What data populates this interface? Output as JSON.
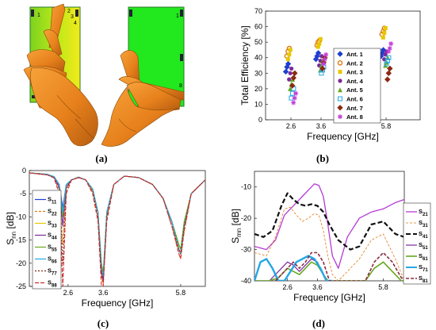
{
  "panel_labels": [
    "(a)",
    "(b)",
    "(c)",
    "(d)"
  ],
  "panel_a": {
    "left_phone_numbers": [
      "1",
      "2",
      "3",
      "4",
      "6",
      "5",
      "8"
    ],
    "right_phone_numbers": [
      "1",
      "5",
      "8",
      "7"
    ]
  },
  "chart_data": [
    {
      "id": "b",
      "type": "scatter",
      "xlabel": "Frequency [GHz]",
      "ylabel": "Total Efficiency [%]",
      "x_ticks": [
        "2.6",
        "3.6",
        "5.8"
      ],
      "y_ticks": [
        "0",
        "10",
        "20",
        "30",
        "40",
        "50",
        "60",
        "70"
      ],
      "ylim": [
        0,
        70
      ],
      "grid": false,
      "legend_position": "right",
      "categories": [
        "2.6",
        "3.6",
        "5.8"
      ],
      "series": [
        {
          "name": "Ant. 1",
          "color": "#1f3fd0",
          "marker": "diamond-filled",
          "values": [
            [
              31,
              34,
              36
            ],
            [
              39,
              41,
              43
            ],
            [
              41,
              43,
              45
            ]
          ]
        },
        {
          "name": "Ant. 2",
          "color": "#e07a10",
          "marker": "circle-open",
          "values": [
            [
              41,
              44,
              46
            ],
            [
              48,
              50,
              51
            ],
            [
              55,
              57,
              59
            ]
          ]
        },
        {
          "name": "Ant. 3",
          "color": "#e8c800",
          "marker": "square-filled",
          "values": [
            [
              39,
              42,
              45
            ],
            [
              47,
              49,
              52
            ],
            [
              53,
              56,
              59
            ]
          ]
        },
        {
          "name": "Ant. 4",
          "color": "#7a2a9a",
          "marker": "circle-filled",
          "values": [
            [
              26,
              30,
              33
            ],
            [
              35,
              38,
              41
            ],
            [
              39,
              42,
              44
            ]
          ]
        },
        {
          "name": "Ant. 5",
          "color": "#66a81e",
          "marker": "triangle-filled",
          "values": [
            [
              20,
              23,
              26
            ],
            [
              32,
              35,
              38
            ],
            [
              35,
              37,
              40
            ]
          ]
        },
        {
          "name": "Ant. 6",
          "color": "#25a7e6",
          "marker": "square-open",
          "values": [
            [
              14,
              17,
              20
            ],
            [
              30,
              32,
              34
            ],
            [
              36,
              38,
              40
            ]
          ]
        },
        {
          "name": "Ant. 7",
          "color": "#8b2a14",
          "marker": "diamond-filled",
          "values": [
            [
              22,
              27,
              30
            ],
            [
              33,
              37,
              40
            ],
            [
              26,
              30,
              33
            ]
          ]
        },
        {
          "name": "Ant. 8",
          "color": "#c43ed8",
          "marker": "star",
          "values": [
            [
              11,
              14,
              17
            ],
            [
              36,
              39,
              42
            ],
            [
              44,
              46,
              49
            ]
          ]
        }
      ]
    },
    {
      "id": "c",
      "type": "line",
      "xlabel": "Frequency [GHz]",
      "ylabel": "S",
      "ylabel_sub": "nn",
      "ylabel_unit": " [dB]",
      "x_ticks": [
        "2.6",
        "3.6",
        "5.8"
      ],
      "y_ticks": [
        "0",
        "-5",
        "-10",
        "-15",
        "-20",
        "-25"
      ],
      "xlim": [
        1.5,
        6.5
      ],
      "ylim": [
        -25,
        0
      ],
      "grid": false,
      "legend_position": "left",
      "legend_entries": [
        {
          "main": "S",
          "sub": "11"
        },
        {
          "main": "S",
          "sub": "22"
        },
        {
          "main": "S",
          "sub": "33"
        },
        {
          "main": "S",
          "sub": "44"
        },
        {
          "main": "S",
          "sub": "55"
        },
        {
          "main": "S",
          "sub": "66"
        },
        {
          "main": "S",
          "sub": "77"
        },
        {
          "main": "S",
          "sub": "88"
        }
      ],
      "series": [
        {
          "name": "S11",
          "color": "#1f3fd0",
          "dash": "",
          "x": [
            1.5,
            2.0,
            2.2,
            2.35,
            2.45,
            2.55,
            2.7,
            2.9,
            3.1,
            3.3,
            3.45,
            3.55,
            3.6,
            3.7,
            3.9,
            4.2,
            4.6,
            5.0,
            5.3,
            5.55,
            5.75,
            5.8,
            5.9,
            6.1,
            6.5
          ],
          "y": [
            -0.5,
            -0.8,
            -1.3,
            -3,
            -8,
            -3,
            -2,
            -1.5,
            -2,
            -4,
            -9,
            -22,
            -24,
            -9,
            -3,
            -1.2,
            -1.5,
            -3,
            -6,
            -11,
            -17,
            -18,
            -12,
            -5,
            -2
          ]
        },
        {
          "name": "S22",
          "color": "#e07a10",
          "dash": "3,2",
          "x": [
            1.5,
            2.0,
            2.2,
            2.35,
            2.45,
            2.55,
            2.7,
            2.9,
            3.1,
            3.3,
            3.45,
            3.55,
            3.6,
            3.7,
            3.9,
            4.2,
            4.6,
            5.0,
            5.3,
            5.55,
            5.75,
            5.8,
            5.9,
            6.1,
            6.5
          ],
          "y": [
            -0.5,
            -0.9,
            -1.5,
            -4,
            -16,
            -4,
            -2,
            -1.5,
            -2,
            -4.5,
            -10,
            -23,
            -24.5,
            -10,
            -3,
            -1.2,
            -1.5,
            -3,
            -6,
            -12,
            -18,
            -19,
            -13,
            -5,
            -2
          ]
        },
        {
          "name": "S33",
          "color": "#e8c800",
          "dash": "",
          "x": [
            1.5,
            2.0,
            2.2,
            2.35,
            2.45,
            2.55,
            2.7,
            2.9,
            3.1,
            3.3,
            3.45,
            3.55,
            3.6,
            3.7,
            3.9,
            4.2,
            4.6,
            5.0,
            5.3,
            5.55,
            5.75,
            5.8,
            5.9,
            6.1,
            6.5
          ],
          "y": [
            -0.5,
            -0.8,
            -1.3,
            -3,
            -9,
            -3,
            -2,
            -1.4,
            -2,
            -4,
            -9,
            -21,
            -23,
            -9,
            -3,
            -1.2,
            -1.5,
            -3,
            -6,
            -11,
            -16,
            -17,
            -11,
            -5,
            -2
          ]
        },
        {
          "name": "S44",
          "color": "#7a2a9a",
          "dash": "",
          "x": [
            1.5,
            2.0,
            2.2,
            2.35,
            2.45,
            2.55,
            2.7,
            2.9,
            3.1,
            3.3,
            3.45,
            3.55,
            3.6,
            3.7,
            3.9,
            4.2,
            4.6,
            5.0,
            5.3,
            5.55,
            5.75,
            5.8,
            5.9,
            6.1,
            6.5
          ],
          "y": [
            -0.5,
            -0.9,
            -1.4,
            -3.5,
            -12,
            -3.5,
            -2,
            -1.5,
            -2,
            -4,
            -9,
            -22,
            -24,
            -9,
            -3,
            -1.2,
            -1.5,
            -3,
            -6,
            -11,
            -17,
            -18,
            -12,
            -5,
            -2
          ]
        },
        {
          "name": "S55",
          "color": "#66a81e",
          "dash": "",
          "x": [
            1.5,
            2.0,
            2.2,
            2.35,
            2.45,
            2.55,
            2.7,
            2.9,
            3.1,
            3.3,
            3.45,
            3.55,
            3.6,
            3.7,
            3.9,
            4.2,
            4.6,
            5.0,
            5.3,
            5.55,
            5.75,
            5.8,
            5.9,
            6.1,
            6.5
          ],
          "y": [
            -0.5,
            -0.8,
            -1.3,
            -3,
            -10,
            -3,
            -2,
            -1.4,
            -2,
            -4,
            -9,
            -20,
            -22,
            -9,
            -3,
            -1.2,
            -1.5,
            -3,
            -6,
            -11,
            -16,
            -17,
            -11,
            -5,
            -2
          ]
        },
        {
          "name": "S66",
          "color": "#25a7e6",
          "dash": "",
          "x": [
            1.5,
            2.0,
            2.2,
            2.35,
            2.45,
            2.55,
            2.7,
            2.9,
            3.1,
            3.3,
            3.45,
            3.55,
            3.6,
            3.7,
            3.9,
            4.2,
            4.6,
            5.0,
            5.3,
            5.55,
            5.75,
            5.8,
            5.9,
            6.1,
            6.5
          ],
          "y": [
            -0.5,
            -0.8,
            -1.3,
            -3,
            -9,
            -3,
            -2,
            -1.4,
            -2,
            -4,
            -9,
            -21,
            -23,
            -9,
            -3,
            -1.2,
            -1.5,
            -3,
            -6,
            -11,
            -17,
            -18,
            -12,
            -5,
            -2
          ]
        },
        {
          "name": "S77",
          "color": "#8b2a14",
          "dash": "2,2",
          "x": [
            1.5,
            2.0,
            2.2,
            2.35,
            2.45,
            2.55,
            2.7,
            2.9,
            3.1,
            3.3,
            3.45,
            3.55,
            3.6,
            3.7,
            3.9,
            4.2,
            4.6,
            5.0,
            5.3,
            5.55,
            5.75,
            5.8,
            5.9,
            6.1,
            6.5
          ],
          "y": [
            -0.5,
            -0.9,
            -1.5,
            -4,
            -20,
            -4,
            -2,
            -1.5,
            -2,
            -4.5,
            -10,
            -22,
            -24,
            -10,
            -3,
            -1.2,
            -1.5,
            -3,
            -6,
            -12,
            -17,
            -18,
            -12,
            -5,
            -2
          ]
        },
        {
          "name": "S88",
          "color": "#d42b2b",
          "dash": "5,2",
          "x": [
            1.5,
            2.0,
            2.2,
            2.35,
            2.45,
            2.55,
            2.7,
            2.9,
            3.1,
            3.3,
            3.45,
            3.55,
            3.6,
            3.7,
            3.9,
            4.2,
            4.6,
            5.0,
            5.3,
            5.55,
            5.75,
            5.8,
            5.9,
            6.1,
            6.5
          ],
          "y": [
            -0.5,
            -0.9,
            -1.6,
            -5,
            -25,
            -5,
            -2,
            -1.5,
            -2,
            -5,
            -11,
            -25,
            -25,
            -11,
            -3,
            -1.2,
            -1.5,
            -3,
            -6,
            -12,
            -18,
            -19,
            -13,
            -5,
            -2
          ]
        }
      ]
    },
    {
      "id": "d",
      "type": "line",
      "xlabel": "Frequency [GHz]",
      "ylabel": "S",
      "ylabel_sub": "mn",
      "ylabel_unit": " [dB]",
      "x_ticks": [
        "2.6",
        "3.6",
        "5.8"
      ],
      "y_ticks": [
        "-10",
        "-20",
        "-30",
        "-40"
      ],
      "xlim": [
        1.5,
        6.5
      ],
      "ylim": [
        -40,
        -5
      ],
      "grid": false,
      "legend_position": "right",
      "legend_entries": [
        {
          "main": "S",
          "sub": "21"
        },
        {
          "main": "S",
          "sub": "31"
        },
        {
          "main": "S",
          "sub": "41"
        },
        {
          "main": "S",
          "sub": "51"
        },
        {
          "main": "S",
          "sub": "61"
        },
        {
          "main": "S",
          "sub": "71"
        },
        {
          "main": "S",
          "sub": "81"
        }
      ],
      "series": [
        {
          "name": "S21",
          "color": "#b53ad6",
          "dash": "",
          "width": 1.3,
          "x": [
            1.5,
            1.9,
            2.2,
            2.5,
            2.7,
            2.9,
            3.1,
            3.3,
            3.5,
            3.65,
            3.8,
            3.95,
            4.1,
            4.3,
            4.6,
            5.0,
            5.4,
            5.8,
            6.2,
            6.5
          ],
          "y": [
            -29,
            -30,
            -27,
            -19,
            -17,
            -15,
            -13,
            -11,
            -9,
            -9.5,
            -13,
            -22,
            -32,
            -36,
            -26,
            -20,
            -18,
            -17,
            -15,
            -14
          ]
        },
        {
          "name": "S31",
          "color": "#e07a10",
          "dash": "3,2",
          "width": 0.8,
          "x": [
            1.5,
            1.9,
            2.2,
            2.5,
            2.7,
            2.9,
            3.1,
            3.3,
            3.5,
            3.65,
            3.8,
            3.95,
            4.1,
            4.3,
            4.6,
            5.0,
            5.4,
            5.8,
            6.2,
            6.5
          ],
          "y": [
            -31,
            -32,
            -26,
            -17,
            -16.5,
            -19,
            -21,
            -20,
            -18.5,
            -19,
            -24,
            -32,
            -38,
            -40,
            -37,
            -33,
            -27,
            -25,
            -33,
            -40
          ]
        },
        {
          "name": "S41",
          "color": "#111111",
          "dash": "6,3",
          "width": 2.2,
          "x": [
            1.5,
            1.8,
            2.1,
            2.4,
            2.6,
            2.8,
            3.0,
            3.2,
            3.4,
            3.6,
            3.8,
            4.0,
            4.3,
            4.7,
            5.0,
            5.4,
            5.8,
            6.2,
            6.5
          ],
          "y": [
            -25,
            -26,
            -24,
            -16,
            -12,
            -14,
            -15.5,
            -16,
            -15.5,
            -16,
            -18,
            -22,
            -27,
            -30,
            -29,
            -22,
            -21,
            -25,
            -26
          ]
        },
        {
          "name": "S51",
          "color": "#7a2a9a",
          "dash": "",
          "width": 1.2,
          "x": [
            1.5,
            2.0,
            2.3,
            2.6,
            2.8,
            3.0,
            3.2,
            3.4,
            3.6,
            3.8,
            3.95,
            4.1
          ],
          "y": [
            -40,
            -40,
            -37,
            -34,
            -35,
            -37,
            -35,
            -33,
            -34,
            -38,
            -40,
            -40
          ]
        },
        {
          "name": "S61",
          "color": "#66a81e",
          "dash": "",
          "width": 1.6,
          "x": [
            1.5,
            2.0,
            2.3,
            2.6,
            2.8,
            3.0,
            3.2,
            3.4,
            3.6,
            3.8,
            3.95,
            4.1,
            5.2,
            5.5,
            5.8,
            6.1,
            6.4,
            6.5
          ],
          "y": [
            -40,
            -40,
            -39,
            -36,
            -37,
            -38,
            -36,
            -34,
            -35,
            -38,
            -40,
            -40,
            -40,
            -36,
            -34,
            -37,
            -40,
            -40
          ]
        },
        {
          "name": "S71",
          "color": "#25a7e6",
          "dash": "",
          "width": 2.4,
          "x": [
            1.5,
            1.7,
            1.9,
            2.1,
            2.3,
            2.5,
            2.7,
            2.9,
            3.1,
            3.3,
            3.5,
            3.7,
            3.9,
            4.1
          ],
          "y": [
            -40,
            -34,
            -33,
            -36,
            -40,
            -40,
            -37,
            -34,
            -33,
            -32,
            -33,
            -36,
            -40,
            -40
          ]
        },
        {
          "name": "S81",
          "color": "#8b2a44",
          "dash": "4,2",
          "width": 1.6,
          "x": [
            2.2,
            2.5,
            2.8,
            3.0,
            3.2,
            3.4,
            3.6,
            3.8,
            4.0,
            5.2,
            5.5,
            5.8,
            6.1,
            6.4,
            6.5
          ],
          "y": [
            -40,
            -37,
            -34,
            -36,
            -34,
            -31,
            -31,
            -34,
            -40,
            -40,
            -34,
            -31,
            -34,
            -39,
            -40
          ]
        }
      ]
    }
  ]
}
